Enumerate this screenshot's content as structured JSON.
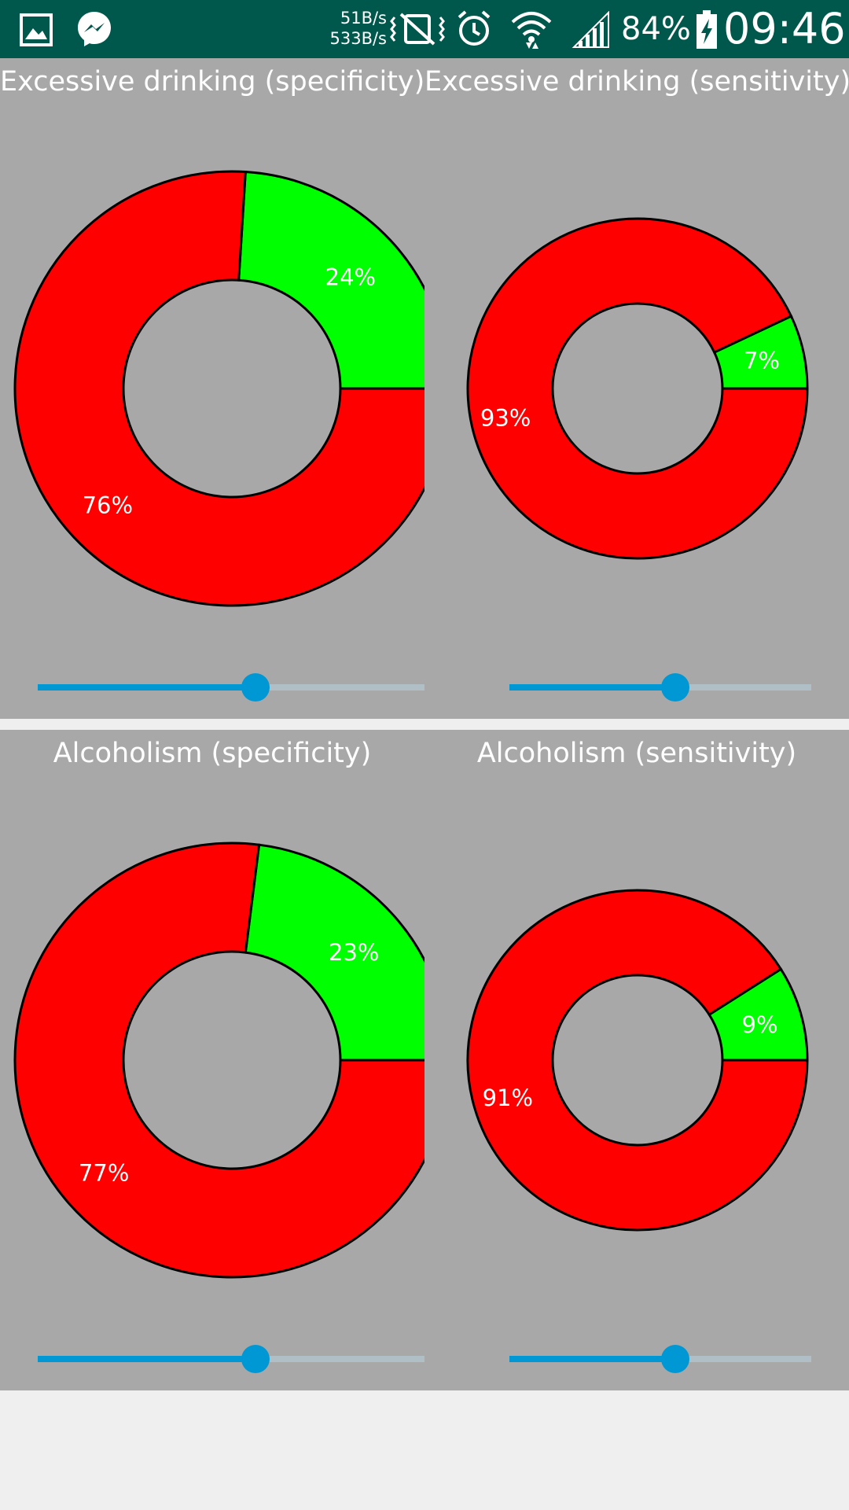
{
  "status_bar": {
    "left_icons": [
      "image-icon",
      "messenger-icon"
    ],
    "upload_rate": "51B/s",
    "download_rate": "533B/s",
    "right_icons": [
      "vibrate-icon",
      "alarm-icon",
      "wifi-icon",
      "signal-icon",
      "battery-charging-icon"
    ],
    "battery": "84%",
    "time": "09:46"
  },
  "colors": {
    "background": "#a8a8a8",
    "negative": "#ff0000",
    "positive": "#00ff00",
    "slider_accent": "#0098d4"
  },
  "chart_data": [
    {
      "type": "pie",
      "title": "Excessive drinking (specificity)",
      "slices": [
        {
          "label": "24%",
          "value": 24,
          "color": "#00ff00"
        },
        {
          "label": "76%",
          "value": 76,
          "color": "#ff0000"
        }
      ],
      "slider_fraction": 0.55,
      "status": "unknown"
    },
    {
      "type": "pie",
      "title": "Excessive drinking (sensitivity)",
      "slices": [
        {
          "label": "7%",
          "value": 7,
          "color": "#00ff00"
        },
        {
          "label": "93%",
          "value": 93,
          "color": "#ff0000"
        }
      ],
      "slider_fraction": 0.55,
      "status": "unknown"
    },
    {
      "type": "pie",
      "title": "Alcoholism (specificity)",
      "slices": [
        {
          "label": "23%",
          "value": 23,
          "color": "#00ff00"
        },
        {
          "label": "77%",
          "value": 77,
          "color": "#ff0000"
        }
      ],
      "slider_fraction": 0.55,
      "status": "unknown"
    },
    {
      "type": "pie",
      "title": "Alcoholism (sensitivity)",
      "slices": [
        {
          "label": "9%",
          "value": 9,
          "color": "#00ff00"
        },
        {
          "label": "91%",
          "value": 91,
          "color": "#ff0000"
        }
      ],
      "slider_fraction": 0.55,
      "status": "unknown"
    }
  ]
}
